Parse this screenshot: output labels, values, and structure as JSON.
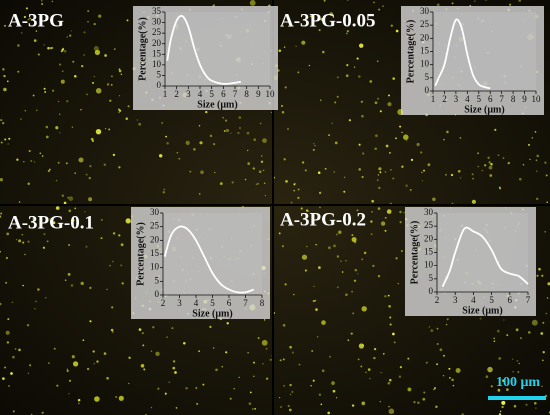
{
  "chart_data": [
    {
      "type": "line",
      "title": "A-3PG",
      "xlabel": "Size (μm)",
      "ylabel": "Percentage(%)",
      "x": [
        1.2,
        1.5,
        2,
        2.5,
        3,
        3.5,
        4,
        4.5,
        5,
        6,
        7,
        7.5
      ],
      "values": [
        12,
        22,
        31,
        33,
        28,
        18,
        10,
        5,
        2.5,
        1,
        1.5,
        2
      ],
      "color": "#ffffff",
      "xlim": [
        1,
        10
      ],
      "xticks": [
        1,
        2,
        3,
        4,
        5,
        6,
        7,
        8,
        9,
        10
      ],
      "ylim": [
        0,
        35
      ],
      "yticks": [
        0,
        5,
        10,
        15,
        20,
        25,
        30,
        35
      ]
    },
    {
      "type": "line",
      "title": "A-3PG-0.05",
      "xlabel": "Size (μm)",
      "ylabel": "Percentage(%)",
      "x": [
        1.2,
        1.5,
        2,
        2.5,
        3,
        3.5,
        4,
        4.5,
        5,
        5.5,
        6
      ],
      "values": [
        2,
        5,
        10,
        20,
        27,
        24,
        14,
        6,
        2.5,
        1.5,
        1
      ],
      "color": "#ffffff",
      "xlim": [
        1,
        10
      ],
      "xticks": [
        1,
        2,
        3,
        4,
        5,
        6,
        7,
        8,
        9,
        10
      ],
      "ylim": [
        0,
        30
      ],
      "yticks": [
        0,
        5,
        10,
        15,
        20,
        25,
        30
      ]
    },
    {
      "type": "line",
      "title": "A-3PG-0.1",
      "xlabel": "Size (μm)",
      "ylabel": "Percentage(%)",
      "x": [
        2.1,
        2.5,
        3,
        3.5,
        4,
        4.5,
        5,
        5.5,
        6,
        6.5,
        7,
        7.5
      ],
      "values": [
        14,
        22,
        25,
        24,
        20,
        14,
        8,
        4,
        2,
        1,
        1,
        2
      ],
      "color": "#ffffff",
      "xlim": [
        2,
        8
      ],
      "xticks": [
        2,
        3,
        4,
        5,
        6,
        7,
        8
      ],
      "ylim": [
        0,
        30
      ],
      "yticks": [
        0,
        5,
        10,
        15,
        20,
        25,
        30
      ]
    },
    {
      "type": "line",
      "title": "A-3PG-0.2",
      "xlabel": "Size (μm)",
      "ylabel": "Percentage(%)",
      "x": [
        2.3,
        2.7,
        3,
        3.5,
        4,
        4.5,
        5,
        5.5,
        6,
        6.5,
        7
      ],
      "values": [
        2,
        8,
        15,
        24,
        23,
        21,
        16,
        9,
        7,
        6,
        3
      ],
      "color": "#ffffff",
      "xlim": [
        2,
        7
      ],
      "xticks": [
        2,
        3,
        4,
        5,
        6,
        7
      ],
      "ylim": [
        0,
        30
      ],
      "yticks": [
        0,
        5,
        10,
        15,
        20,
        25,
        30
      ]
    }
  ],
  "scale_bar": "100 μm"
}
